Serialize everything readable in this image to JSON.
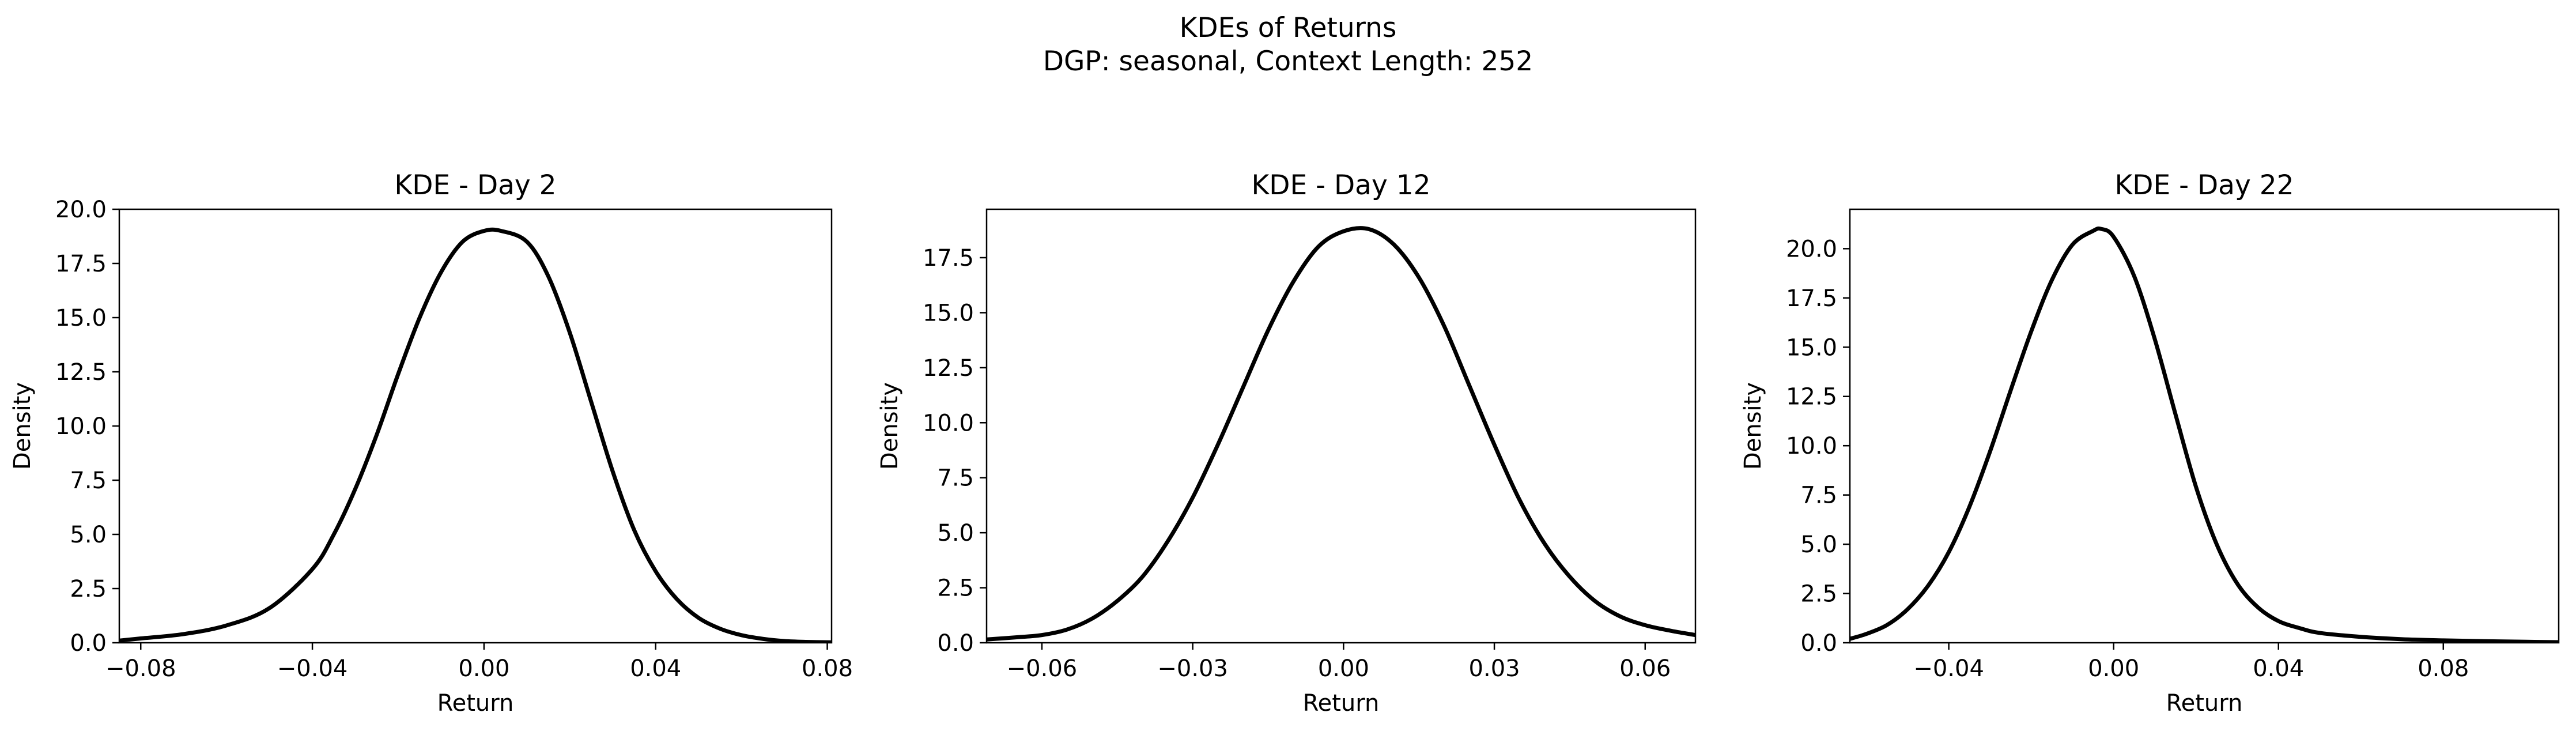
{
  "figure": {
    "title_line1": "KDEs of Returns",
    "title_line2": "DGP: seasonal, Context Length: 252"
  },
  "chart_data": [
    {
      "type": "line",
      "title": "KDE - Day 2",
      "xlabel": "Return",
      "ylabel": "Density",
      "xlim": [
        -0.085,
        0.081
      ],
      "ylim": [
        0,
        20
      ],
      "xticks": [
        -0.08,
        -0.04,
        0.0,
        0.04,
        0.08
      ],
      "xtick_labels": [
        "−0.08",
        "−0.04",
        "0.00",
        "0.04",
        "0.08"
      ],
      "yticks": [
        0,
        2.5,
        5,
        7.5,
        10,
        12.5,
        15,
        17.5,
        20
      ],
      "ytick_labels": [
        "0.0",
        "2.5",
        "5.0",
        "7.5",
        "10.0",
        "12.5",
        "15.0",
        "17.5",
        "20.0"
      ],
      "grid": false,
      "line_color": "#000000",
      "series": [
        {
          "x": [
            -0.085,
            -0.08,
            -0.07,
            -0.06,
            -0.05,
            -0.04,
            -0.035,
            -0.03,
            -0.025,
            -0.02,
            -0.015,
            -0.01,
            -0.005,
            0.0,
            0.004,
            0.01,
            0.015,
            0.02,
            0.025,
            0.03,
            0.035,
            0.04,
            0.045,
            0.05,
            0.055,
            0.06,
            0.065,
            0.07,
            0.075,
            0.081
          ],
          "y": [
            0.1,
            0.2,
            0.4,
            0.8,
            1.6,
            3.4,
            5.0,
            7.1,
            9.6,
            12.4,
            15.0,
            17.1,
            18.5,
            19.0,
            19.0,
            18.5,
            16.9,
            14.3,
            11.1,
            7.9,
            5.2,
            3.3,
            2.0,
            1.15,
            0.65,
            0.35,
            0.18,
            0.08,
            0.04,
            0.02
          ]
        }
      ]
    },
    {
      "type": "line",
      "title": "KDE - Day 12",
      "xlabel": "Return",
      "ylabel": "Density",
      "xlim": [
        -0.071,
        0.07
      ],
      "ylim": [
        0,
        19.7
      ],
      "xticks": [
        -0.06,
        -0.03,
        0.0,
        0.03,
        0.06
      ],
      "xtick_labels": [
        "−0.06",
        "−0.03",
        "0.00",
        "0.03",
        "0.06"
      ],
      "yticks": [
        0,
        2.5,
        5,
        7.5,
        10,
        12.5,
        15,
        17.5
      ],
      "ytick_labels": [
        "0.0",
        "2.5",
        "5.0",
        "7.5",
        "10.0",
        "12.5",
        "15.0",
        "17.5"
      ],
      "grid": false,
      "line_color": "#000000",
      "series": [
        {
          "x": [
            -0.071,
            -0.065,
            -0.06,
            -0.055,
            -0.05,
            -0.045,
            -0.04,
            -0.035,
            -0.03,
            -0.025,
            -0.02,
            -0.015,
            -0.01,
            -0.005,
            0.0,
            0.005,
            0.01,
            0.015,
            0.02,
            0.025,
            0.03,
            0.035,
            0.04,
            0.045,
            0.05,
            0.055,
            0.06,
            0.065,
            0.07
          ],
          "y": [
            0.15,
            0.25,
            0.35,
            0.6,
            1.1,
            1.9,
            3.0,
            4.6,
            6.6,
            9.0,
            11.6,
            14.2,
            16.4,
            18.0,
            18.7,
            18.8,
            18.1,
            16.6,
            14.4,
            11.7,
            9.0,
            6.5,
            4.5,
            3.0,
            1.9,
            1.2,
            0.8,
            0.55,
            0.35
          ]
        }
      ]
    },
    {
      "type": "line",
      "title": "KDE - Day 22",
      "xlabel": "Return",
      "ylabel": "Density",
      "xlim": [
        -0.064,
        0.108
      ],
      "ylim": [
        0,
        22
      ],
      "xticks": [
        -0.04,
        0.0,
        0.04,
        0.08
      ],
      "xtick_labels": [
        "−0.04",
        "0.00",
        "0.04",
        "0.08"
      ],
      "yticks": [
        0,
        2.5,
        5,
        7.5,
        10,
        12.5,
        15,
        17.5,
        20
      ],
      "ytick_labels": [
        "0.0",
        "2.5",
        "5.0",
        "7.5",
        "10.0",
        "12.5",
        "15.0",
        "17.5",
        "20.0"
      ],
      "grid": false,
      "line_color": "#000000",
      "series": [
        {
          "x": [
            -0.064,
            -0.06,
            -0.055,
            -0.05,
            -0.045,
            -0.04,
            -0.035,
            -0.03,
            -0.025,
            -0.02,
            -0.015,
            -0.01,
            -0.005,
            -0.003,
            0.0,
            0.005,
            0.01,
            0.015,
            0.02,
            0.025,
            0.03,
            0.035,
            0.04,
            0.045,
            0.05,
            0.06,
            0.07,
            0.08,
            0.09,
            0.1,
            0.108
          ],
          "y": [
            0.2,
            0.45,
            0.9,
            1.7,
            2.9,
            4.6,
            6.9,
            9.7,
            12.8,
            15.8,
            18.4,
            20.2,
            20.9,
            21.0,
            20.6,
            18.6,
            15.4,
            11.6,
            7.9,
            5.0,
            3.0,
            1.8,
            1.1,
            0.75,
            0.5,
            0.3,
            0.18,
            0.12,
            0.08,
            0.05,
            0.03
          ]
        }
      ]
    }
  ]
}
